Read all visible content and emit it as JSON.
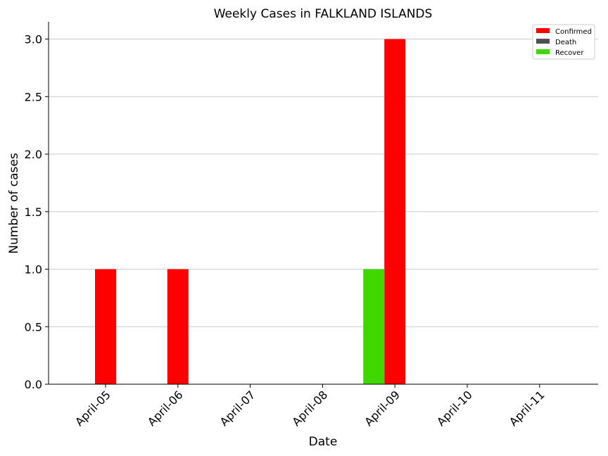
{
  "chart_data": {
    "type": "bar",
    "title": "Weekly Cases in FALKLAND ISLANDS",
    "xlabel": "Date",
    "ylabel": "Number of cases",
    "categories": [
      "April-05",
      "April-06",
      "April-07",
      "April-08",
      "April-09",
      "April-10",
      "April-11"
    ],
    "series": [
      {
        "name": "Confirmed",
        "color": "#ff0000",
        "values": [
          1,
          1,
          0,
          0,
          3,
          0,
          0
        ]
      },
      {
        "name": "Death",
        "color": "#505050",
        "values": [
          0,
          0,
          0,
          0,
          0,
          0,
          0
        ]
      },
      {
        "name": "Recover",
        "color": "#3ed800",
        "values": [
          0,
          0,
          0,
          0,
          1,
          0,
          0
        ]
      }
    ],
    "ylim": [
      0,
      3.15
    ],
    "yticks": [
      "0.0",
      "0.5",
      "1.0",
      "1.5",
      "2.0",
      "2.5",
      "3.0"
    ],
    "grid": "horizontal",
    "legend_position": "top-right"
  }
}
